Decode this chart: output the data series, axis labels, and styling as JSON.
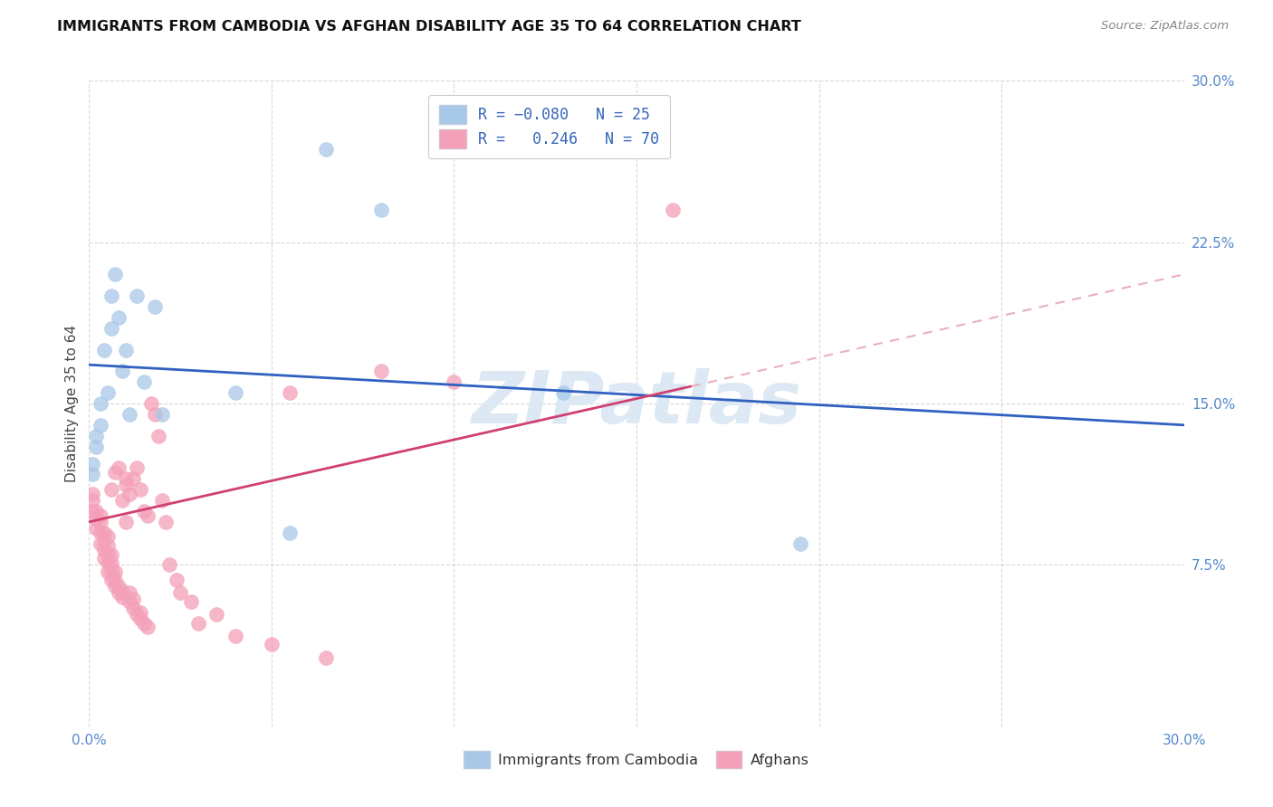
{
  "title": "IMMIGRANTS FROM CAMBODIA VS AFGHAN DISABILITY AGE 35 TO 64 CORRELATION CHART",
  "source": "Source: ZipAtlas.com",
  "ylabel": "Disability Age 35 to 64",
  "xlim": [
    0.0,
    0.3
  ],
  "ylim": [
    0.0,
    0.3
  ],
  "xticks": [
    0.0,
    0.05,
    0.1,
    0.15,
    0.2,
    0.25,
    0.3
  ],
  "yticks": [
    0.075,
    0.15,
    0.225,
    0.3
  ],
  "ytick_labels": [
    "7.5%",
    "15.0%",
    "22.5%",
    "30.0%"
  ],
  "r_cambodia": -0.08,
  "n_cambodia": 25,
  "r_afghan": 0.246,
  "n_afghan": 70,
  "color_cambodia": "#a8c8e8",
  "color_afghan": "#f4a0b8",
  "trendline_color_cambodia": "#3060c0",
  "trendline_color_afghan": "#d04070",
  "trendline_color_extrapolated": "#e8b0c0",
  "background_color": "#ffffff",
  "grid_color": "#d8d8d8",
  "watermark_color": "#dce8f4",
  "cambodia_x": [
    0.001,
    0.001,
    0.002,
    0.002,
    0.003,
    0.003,
    0.004,
    0.005,
    0.006,
    0.006,
    0.007,
    0.008,
    0.009,
    0.01,
    0.011,
    0.013,
    0.015,
    0.018,
    0.02,
    0.04,
    0.055,
    0.065,
    0.08,
    0.13,
    0.195
  ],
  "cambodia_y": [
    0.117,
    0.122,
    0.13,
    0.135,
    0.14,
    0.15,
    0.175,
    0.155,
    0.185,
    0.2,
    0.21,
    0.19,
    0.165,
    0.175,
    0.145,
    0.2,
    0.16,
    0.195,
    0.145,
    0.155,
    0.09,
    0.268,
    0.24,
    0.155,
    0.085
  ],
  "afghan_x": [
    0.001,
    0.001,
    0.001,
    0.002,
    0.002,
    0.002,
    0.003,
    0.003,
    0.003,
    0.003,
    0.004,
    0.004,
    0.004,
    0.004,
    0.005,
    0.005,
    0.005,
    0.005,
    0.005,
    0.006,
    0.006,
    0.006,
    0.006,
    0.006,
    0.007,
    0.007,
    0.007,
    0.007,
    0.008,
    0.008,
    0.008,
    0.009,
    0.009,
    0.009,
    0.01,
    0.01,
    0.01,
    0.011,
    0.011,
    0.011,
    0.012,
    0.012,
    0.012,
    0.013,
    0.013,
    0.014,
    0.014,
    0.014,
    0.015,
    0.015,
    0.016,
    0.016,
    0.017,
    0.018,
    0.019,
    0.02,
    0.021,
    0.022,
    0.024,
    0.025,
    0.028,
    0.03,
    0.035,
    0.04,
    0.05,
    0.055,
    0.065,
    0.08,
    0.1,
    0.16
  ],
  "afghan_y": [
    0.1,
    0.105,
    0.108,
    0.092,
    0.096,
    0.1,
    0.085,
    0.09,
    0.095,
    0.098,
    0.078,
    0.082,
    0.086,
    0.09,
    0.072,
    0.076,
    0.08,
    0.084,
    0.088,
    0.068,
    0.072,
    0.076,
    0.08,
    0.11,
    0.065,
    0.068,
    0.072,
    0.118,
    0.062,
    0.065,
    0.12,
    0.06,
    0.063,
    0.105,
    0.112,
    0.095,
    0.115,
    0.058,
    0.062,
    0.108,
    0.055,
    0.059,
    0.115,
    0.052,
    0.12,
    0.05,
    0.053,
    0.11,
    0.048,
    0.1,
    0.046,
    0.098,
    0.15,
    0.145,
    0.135,
    0.105,
    0.095,
    0.075,
    0.068,
    0.062,
    0.058,
    0.048,
    0.052,
    0.042,
    0.038,
    0.155,
    0.032,
    0.165,
    0.16,
    0.24
  ],
  "trendline_cambodia_x0": 0.0,
  "trendline_cambodia_y0": 0.168,
  "trendline_cambodia_x1": 0.3,
  "trendline_cambodia_y1": 0.14,
  "trendline_afghan_solid_x0": 0.0,
  "trendline_afghan_solid_y0": 0.095,
  "trendline_afghan_solid_x1": 0.165,
  "trendline_afghan_solid_y1": 0.158,
  "trendline_afghan_dash_x0": 0.165,
  "trendline_afghan_dash_y0": 0.158,
  "trendline_afghan_dash_x1": 0.3,
  "trendline_afghan_dash_y1": 0.21
}
